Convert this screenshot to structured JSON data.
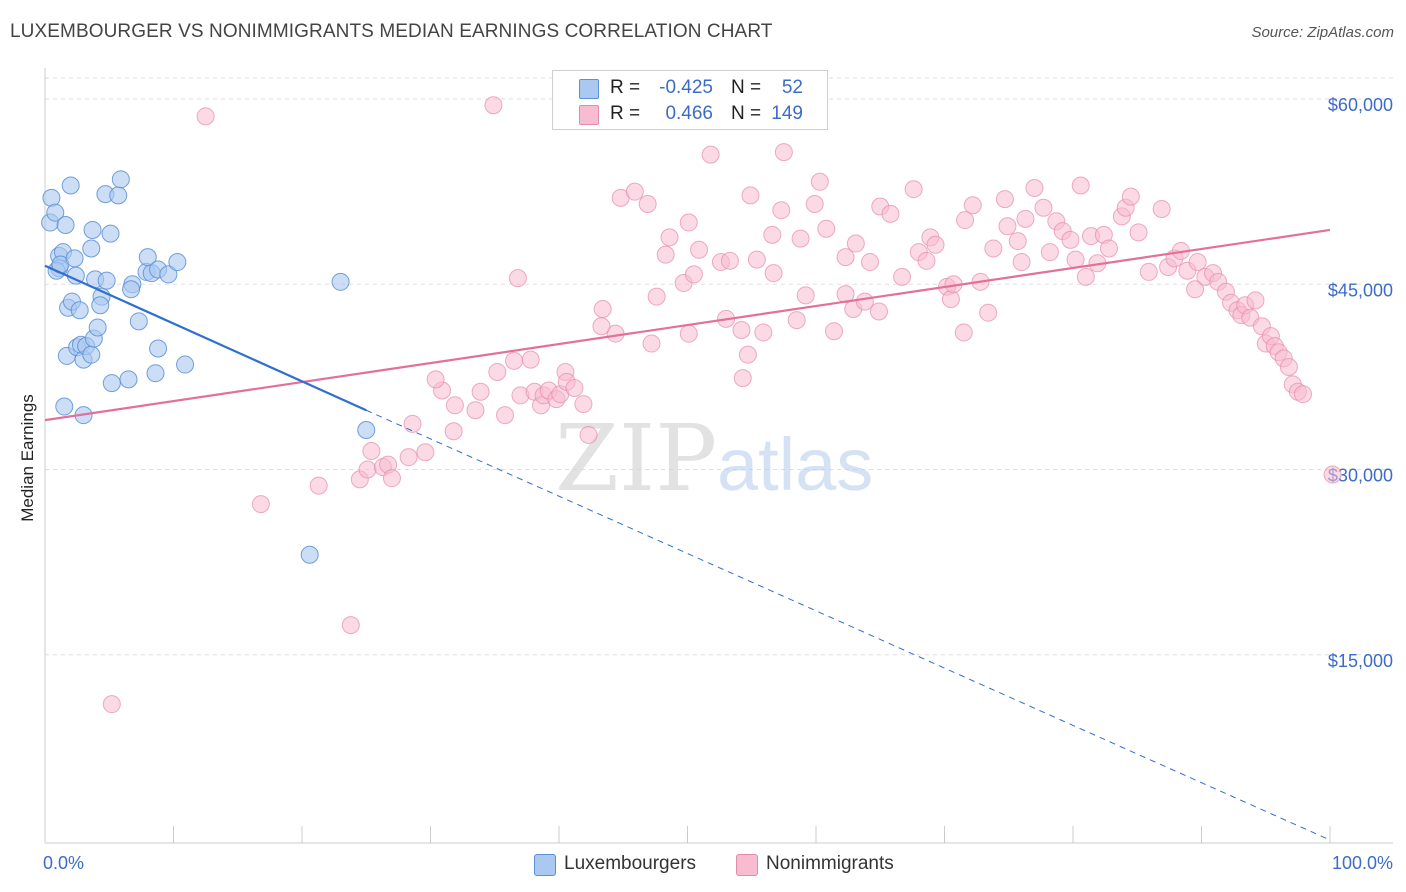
{
  "title": "LUXEMBOURGER VS NONIMMIGRANTS MEDIAN EARNINGS CORRELATION CHART",
  "source": "Source: ZipAtlas.com",
  "watermark": {
    "zip": "ZIP",
    "atlas": "atlas"
  },
  "colors": {
    "blue_fill": "#aac8f0",
    "blue_stroke": "#5b8fd6",
    "blue_line": "#2f6fd0",
    "pink_fill": "#f7bcd0",
    "pink_stroke": "#e58aab",
    "pink_line": "#e3709a",
    "grid": "#dddddd",
    "axis_text": "#3b6cc9"
  },
  "legend_top": {
    "rows": [
      {
        "r_label": "R =",
        "r_value": "-0.425",
        "n_label": "N =",
        "n_value": "52"
      },
      {
        "r_label": "R =",
        "r_value": "0.466",
        "n_label": "N =",
        "n_value": "149"
      }
    ]
  },
  "legend_bottom": {
    "luxembourgers": "Luxembourgers",
    "nonimmigrants": "Nonimmigrants"
  },
  "chart_data": {
    "type": "scatter",
    "title": "LUXEMBOURGER VS NONIMMIGRANTS MEDIAN EARNINGS CORRELATION CHART",
    "xlabel": "",
    "ylabel": "Median Earnings",
    "xlim": [
      0,
      100
    ],
    "ylim": [
      0,
      63000
    ],
    "x_tick_labels": [
      "0.0%",
      "100.0%"
    ],
    "y_ticks": [
      15000,
      30000,
      45000,
      60000
    ],
    "y_tick_labels": [
      "$15,000",
      "$30,000",
      "$45,000",
      "$60,000"
    ],
    "grid": true,
    "series": [
      {
        "name": "Luxembourgers",
        "r": -0.425,
        "n": 52,
        "trend": {
          "x": [
            0,
            25
          ],
          "y": [
            46500,
            34800
          ]
        },
        "trend_extension": {
          "x": [
            25,
            100
          ],
          "y": [
            34800,
            0
          ]
        },
        "points": [
          [
            0.4,
            50000
          ],
          [
            0.5,
            52000
          ],
          [
            0.8,
            50800
          ],
          [
            1.1,
            47300
          ],
          [
            1.1,
            46300
          ],
          [
            1.4,
            47600
          ],
          [
            0.9,
            46100
          ],
          [
            1.2,
            46600
          ],
          [
            1.6,
            49800
          ],
          [
            2.0,
            53000
          ],
          [
            2.3,
            47100
          ],
          [
            2.4,
            45700
          ],
          [
            1.8,
            43100
          ],
          [
            2.1,
            43600
          ],
          [
            2.7,
            42900
          ],
          [
            1.7,
            39200
          ],
          [
            2.5,
            39900
          ],
          [
            2.8,
            40100
          ],
          [
            3.0,
            38900
          ],
          [
            3.2,
            40000
          ],
          [
            3.6,
            39300
          ],
          [
            3.8,
            40600
          ],
          [
            4.1,
            41500
          ],
          [
            4.4,
            44000
          ],
          [
            4.3,
            43300
          ],
          [
            3.9,
            45400
          ],
          [
            4.8,
            45300
          ],
          [
            5.1,
            49100
          ],
          [
            4.7,
            52300
          ],
          [
            5.7,
            52200
          ],
          [
            5.9,
            53500
          ],
          [
            3.6,
            47900
          ],
          [
            3.7,
            49400
          ],
          [
            5.2,
            37000
          ],
          [
            6.5,
            37300
          ],
          [
            6.8,
            45000
          ],
          [
            6.7,
            44600
          ],
          [
            7.3,
            42000
          ],
          [
            7.9,
            46000
          ],
          [
            8.3,
            45900
          ],
          [
            8.6,
            37800
          ],
          [
            8.8,
            39800
          ],
          [
            8.0,
            47200
          ],
          [
            8.8,
            46200
          ],
          [
            9.6,
            45800
          ],
          [
            10.3,
            46800
          ],
          [
            10.9,
            38500
          ],
          [
            1.5,
            35100
          ],
          [
            3.0,
            34400
          ],
          [
            23.0,
            45200
          ],
          [
            25.0,
            33200
          ],
          [
            20.6,
            23100
          ]
        ]
      },
      {
        "name": "Nonimmigrants",
        "r": 0.466,
        "n": 149,
        "trend": {
          "x": [
            0,
            100
          ],
          "y": [
            34000,
            49400
          ]
        },
        "points": [
          [
            12.5,
            58600
          ],
          [
            34.9,
            59500
          ],
          [
            5.2,
            11000
          ],
          [
            16.8,
            27200
          ],
          [
            21.3,
            28700
          ],
          [
            23.8,
            17400
          ],
          [
            24.5,
            29200
          ],
          [
            25.1,
            30000
          ],
          [
            25.4,
            31500
          ],
          [
            26.3,
            30200
          ],
          [
            26.7,
            30400
          ],
          [
            27.0,
            29300
          ],
          [
            28.6,
            33700
          ],
          [
            28.3,
            31000
          ],
          [
            29.6,
            31400
          ],
          [
            30.9,
            36400
          ],
          [
            30.4,
            37300
          ],
          [
            31.9,
            35200
          ],
          [
            31.8,
            33100
          ],
          [
            33.5,
            34800
          ],
          [
            33.9,
            36300
          ],
          [
            35.2,
            37900
          ],
          [
            35.8,
            34400
          ],
          [
            36.5,
            38800
          ],
          [
            37.0,
            36000
          ],
          [
            37.8,
            38900
          ],
          [
            38.1,
            36300
          ],
          [
            38.6,
            35200
          ],
          [
            38.8,
            36000
          ],
          [
            39.2,
            36400
          ],
          [
            39.8,
            35700
          ],
          [
            40.1,
            36100
          ],
          [
            40.5,
            37900
          ],
          [
            40.6,
            37100
          ],
          [
            41.2,
            36600
          ],
          [
            41.9,
            35300
          ],
          [
            42.3,
            32800
          ],
          [
            43.4,
            43000
          ],
          [
            44.4,
            41000
          ],
          [
            43.3,
            41600
          ],
          [
            44.8,
            52000
          ],
          [
            45.9,
            52500
          ],
          [
            46.9,
            51500
          ],
          [
            47.6,
            44000
          ],
          [
            47.2,
            40200
          ],
          [
            48.3,
            47400
          ],
          [
            48.6,
            48800
          ],
          [
            49.7,
            45100
          ],
          [
            50.1,
            50000
          ],
          [
            50.5,
            45800
          ],
          [
            50.9,
            47800
          ],
          [
            50.1,
            41000
          ],
          [
            51.8,
            55500
          ],
          [
            52.6,
            46800
          ],
          [
            53.0,
            42200
          ],
          [
            53.3,
            46900
          ],
          [
            54.7,
            39300
          ],
          [
            54.2,
            41300
          ],
          [
            54.3,
            37400
          ],
          [
            55.4,
            47000
          ],
          [
            54.9,
            52200
          ],
          [
            55.9,
            41100
          ],
          [
            56.6,
            49000
          ],
          [
            56.7,
            45900
          ],
          [
            57.5,
            55700
          ],
          [
            57.3,
            51000
          ],
          [
            58.5,
            42100
          ],
          [
            58.8,
            48700
          ],
          [
            59.2,
            44100
          ],
          [
            59.9,
            51500
          ],
          [
            60.3,
            53300
          ],
          [
            60.8,
            49500
          ],
          [
            61.4,
            41200
          ],
          [
            62.3,
            47200
          ],
          [
            62.3,
            44200
          ],
          [
            62.9,
            43000
          ],
          [
            63.1,
            48300
          ],
          [
            63.8,
            43600
          ],
          [
            64.2,
            46800
          ],
          [
            64.9,
            42800
          ],
          [
            65.0,
            51300
          ],
          [
            65.8,
            50700
          ],
          [
            66.7,
            45600
          ],
          [
            67.6,
            52700
          ],
          [
            68.0,
            47600
          ],
          [
            68.6,
            46900
          ],
          [
            68.9,
            48800
          ],
          [
            69.3,
            48200
          ],
          [
            70.2,
            44800
          ],
          [
            70.5,
            43800
          ],
          [
            70.7,
            45000
          ],
          [
            71.5,
            41100
          ],
          [
            71.6,
            50200
          ],
          [
            72.2,
            51400
          ],
          [
            72.8,
            45200
          ],
          [
            73.4,
            42700
          ],
          [
            73.8,
            47900
          ],
          [
            74.7,
            51900
          ],
          [
            74.9,
            49700
          ],
          [
            75.7,
            48500
          ],
          [
            76.0,
            46800
          ],
          [
            76.3,
            50300
          ],
          [
            77.0,
            52800
          ],
          [
            77.7,
            51200
          ],
          [
            78.2,
            47600
          ],
          [
            78.7,
            50100
          ],
          [
            79.2,
            49300
          ],
          [
            79.8,
            48600
          ],
          [
            80.2,
            47000
          ],
          [
            80.6,
            53000
          ],
          [
            81.0,
            45600
          ],
          [
            81.4,
            48900
          ],
          [
            81.9,
            46700
          ],
          [
            82.4,
            49000
          ],
          [
            82.8,
            47900
          ],
          [
            83.8,
            50500
          ],
          [
            84.1,
            51200
          ],
          [
            84.5,
            52100
          ],
          [
            85.1,
            49200
          ],
          [
            85.9,
            46000
          ],
          [
            86.9,
            51100
          ],
          [
            87.4,
            46400
          ],
          [
            87.9,
            47100
          ],
          [
            88.4,
            47700
          ],
          [
            88.9,
            46100
          ],
          [
            89.5,
            44600
          ],
          [
            89.7,
            46800
          ],
          [
            90.3,
            45600
          ],
          [
            90.9,
            45900
          ],
          [
            91.3,
            45200
          ],
          [
            91.9,
            44400
          ],
          [
            92.3,
            43500
          ],
          [
            92.8,
            42900
          ],
          [
            93.1,
            42500
          ],
          [
            93.4,
            43300
          ],
          [
            93.8,
            42300
          ],
          [
            94.2,
            43700
          ],
          [
            94.7,
            41600
          ],
          [
            95.0,
            40200
          ],
          [
            95.4,
            40800
          ],
          [
            95.7,
            40000
          ],
          [
            96.0,
            39500
          ],
          [
            96.4,
            39000
          ],
          [
            96.8,
            38300
          ],
          [
            97.1,
            36900
          ],
          [
            97.5,
            36300
          ],
          [
            97.9,
            36100
          ],
          [
            100.2,
            29600
          ],
          [
            36.8,
            45500
          ]
        ]
      }
    ]
  }
}
